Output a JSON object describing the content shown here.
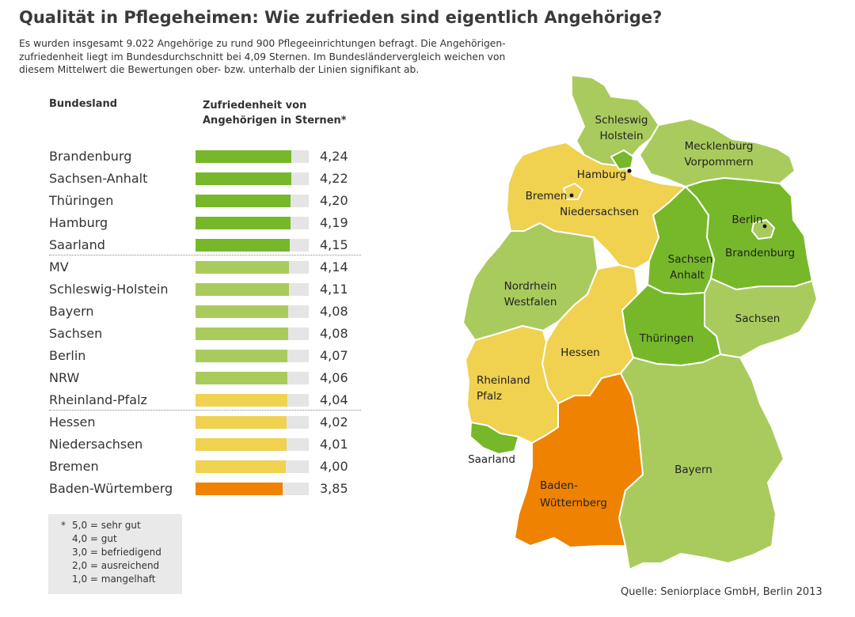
{
  "title": "Qualität in Pflegeheimen: Wie zufrieden sind eigentlich Angehörige?",
  "intro": [
    "Es wurden insgesamt 9.022 Angehörige zu rund 900 Pflegeeinrichtungen befragt. Die Angehörigen-",
    "zufriedenheit liegt im Bundesdurchschnitt bei 4,09 Sternen. Im Bundesländervergleich weichen von",
    "diesem Mittelwert die Bewertungen ober- bzw. unterhalb der Linien signifikant ab."
  ],
  "table": {
    "col_state": "Bundesland",
    "col_value": [
      "Zufriedenheit von",
      "Angehörigen in Sternen*"
    ],
    "scale_max": 5,
    "rows": [
      {
        "name": "Brandenburg",
        "value": 4.24,
        "display": "4,24",
        "color": "#76b82a"
      },
      {
        "name": "Sachsen-Anhalt",
        "value": 4.22,
        "display": "4,22",
        "color": "#76b82a"
      },
      {
        "name": "Thüringen",
        "value": 4.2,
        "display": "4,20",
        "color": "#76b82a"
      },
      {
        "name": "Hamburg",
        "value": 4.19,
        "display": "4,19",
        "color": "#76b82a"
      },
      {
        "name": "Saarland",
        "value": 4.15,
        "display": "4,15",
        "color": "#76b82a"
      },
      {
        "name": "MV",
        "value": 4.14,
        "display": "4,14",
        "color": "#a9cb5e"
      },
      {
        "name": "Schleswig-Holstein",
        "value": 4.11,
        "display": "4,11",
        "color": "#a9cb5e"
      },
      {
        "name": "Bayern",
        "value": 4.08,
        "display": "4,08",
        "color": "#a9cb5e"
      },
      {
        "name": "Sachsen",
        "value": 4.08,
        "display": "4,08",
        "color": "#a9cb5e"
      },
      {
        "name": "Berlin",
        "value": 4.07,
        "display": "4,07",
        "color": "#a9cb5e"
      },
      {
        "name": "NRW",
        "value": 4.06,
        "display": "4,06",
        "color": "#a9cb5e"
      },
      {
        "name": "Rheinland-Pfalz",
        "value": 4.04,
        "display": "4,04",
        "color": "#f0d150"
      },
      {
        "name": "Hessen",
        "value": 4.02,
        "display": "4,02",
        "color": "#f0d150"
      },
      {
        "name": "Niedersachsen",
        "value": 4.01,
        "display": "4,01",
        "color": "#f0d150"
      },
      {
        "name": "Bremen",
        "value": 4.0,
        "display": "4,00",
        "color": "#f0d150"
      },
      {
        "name": "Baden-Würtemberg",
        "value": 3.85,
        "display": "3,85",
        "color": "#ef8200"
      }
    ],
    "separators_after": [
      4,
      11
    ]
  },
  "legend": {
    "asterisk": "*",
    "items": [
      "5,0 = sehr gut",
      "4,0 = gut",
      "3,0 = befriedigend",
      "2,0 = ausreichend",
      "1,0 = mangelhaft"
    ]
  },
  "map": {
    "colors": {
      "top": "#76b82a",
      "mid": "#a9cb5e",
      "low": "#f0d150",
      "bottom": "#ef8200",
      "border": "#ffffff"
    },
    "labels": {
      "sh": [
        "Schleswig",
        "Holstein"
      ],
      "mv": [
        "Mecklenburg",
        "Vorpommern"
      ],
      "hh": "Hamburg",
      "hb": "Bremen",
      "ni": "Niedersachsen",
      "be": "Berlin",
      "bb": "Brandenburg",
      "st": [
        "Sachsen",
        "Anhalt"
      ],
      "nw": [
        "Nordrhein",
        "Westfalen"
      ],
      "sn": "Sachsen",
      "he": "Hessen",
      "th": "Thüringen",
      "rp": [
        "Rheinland",
        "Pfalz"
      ],
      "sl": "Saarland",
      "bw": [
        "Baden-",
        "Wütternberg"
      ],
      "by": "Bayern"
    }
  },
  "source": "Quelle: Seniorplace GmbH, Berlin 2013"
}
